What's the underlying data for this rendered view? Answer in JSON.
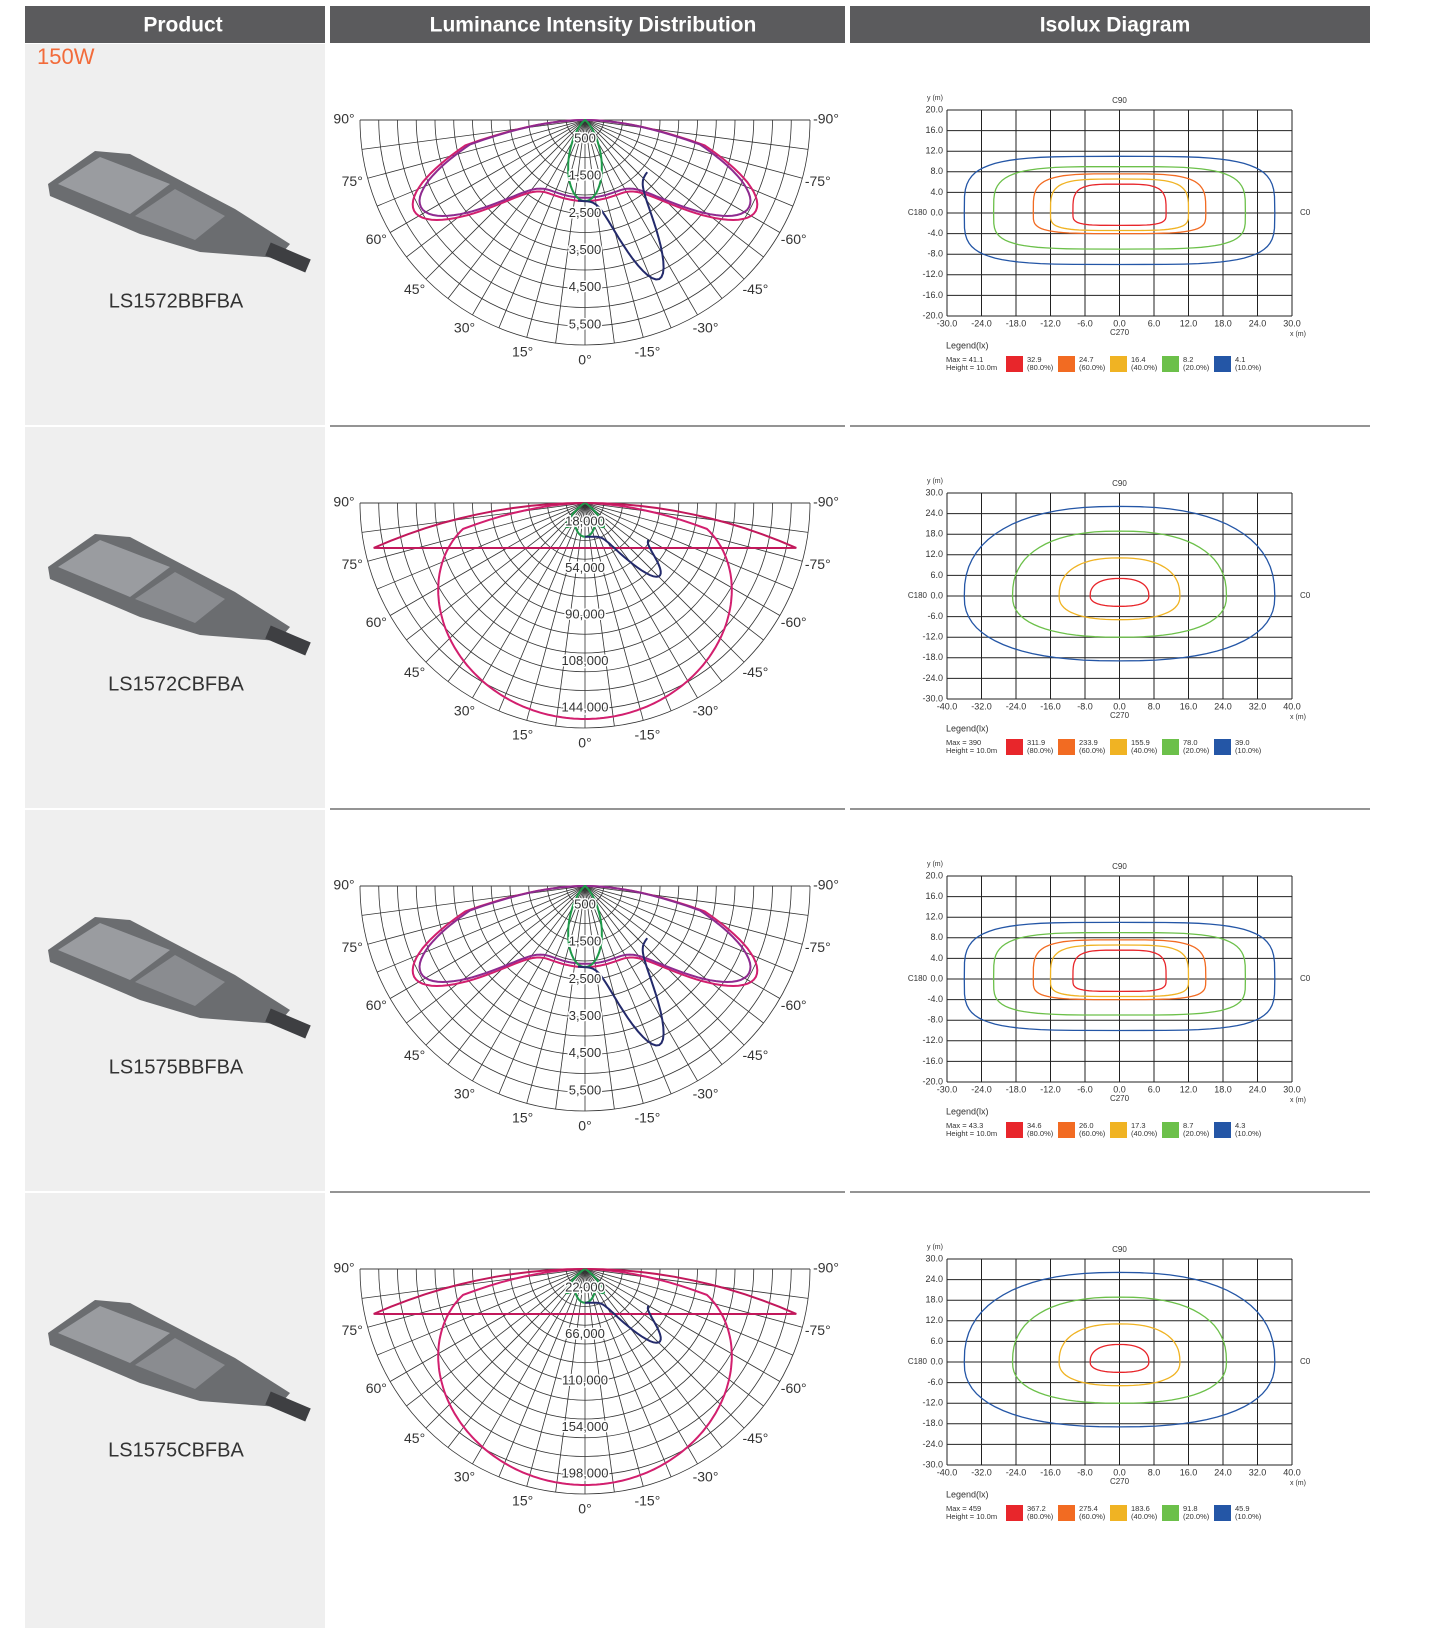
{
  "header": {
    "columns": [
      "Product",
      "Luminance Intensity Distribution",
      "Isolux Diagram"
    ]
  },
  "wattage": "150W",
  "polar_angles_left": [
    "90°",
    "75°",
    "60°",
    "45°",
    "30°",
    "15°",
    "0°"
  ],
  "polar_angles_right": [
    "-90°",
    "-75°",
    "-60°",
    "-45°",
    "-30°",
    "-15°"
  ],
  "isolux_labels": {
    "y_axis": "y (m)",
    "x_axis": "x (m)",
    "top": "C90",
    "left": "C180",
    "right": "C0",
    "bottom": "C270",
    "legend_title": "Legend(lx)",
    "height": "Height = 10.0m",
    "percents": [
      "(80.0%)",
      "(60.0%)",
      "(40.0%)",
      "(20.0%)",
      "(10.0%)"
    ],
    "colors": [
      "#e8262b",
      "#f26b22",
      "#f0b323",
      "#6cc04a",
      "#2456a6"
    ]
  },
  "rows": [
    {
      "product": "LS1572BBFBA",
      "rings": [
        "500",
        "1,500",
        "2,500",
        "3,500",
        "4,500",
        "5,500"
      ],
      "yticks": [
        "20.0",
        "16.0",
        "12.0",
        "8.0",
        "4.0",
        "0.0",
        "-4.0",
        "-8.0",
        "-12.0",
        "-16.0",
        "-20.0"
      ],
      "xticks": [
        "-30.0",
        "-24.0",
        "-18.0",
        "-12.0",
        "-6.0",
        "0.0",
        "6.0",
        "12.0",
        "18.0",
        "24.0",
        "30.0"
      ],
      "max": "Max = 41.1",
      "levels": [
        "32.9",
        "24.7",
        "16.4",
        "8.2",
        "4.1"
      ]
    },
    {
      "product": "LS1572CBFBA",
      "rings": [
        "18,000",
        "54,000",
        "90,000",
        "108,000",
        "144,000"
      ],
      "yticks": [
        "30.0",
        "24.0",
        "18.0",
        "12.0",
        "6.0",
        "0.0",
        "-6.0",
        "-12.0",
        "-18.0",
        "-24.0",
        "-30.0"
      ],
      "xticks": [
        "-40.0",
        "-32.0",
        "-24.0",
        "-16.0",
        "-8.0",
        "0.0",
        "8.0",
        "16.0",
        "24.0",
        "32.0",
        "40.0"
      ],
      "max": "Max = 390",
      "levels": [
        "311.9",
        "233.9",
        "155.9",
        "78.0",
        "39.0"
      ]
    },
    {
      "product": "LS1575BBFBA",
      "rings": [
        "500",
        "1,500",
        "2,500",
        "3,500",
        "4,500",
        "5,500"
      ],
      "yticks": [
        "20.0",
        "16.0",
        "12.0",
        "8.0",
        "4.0",
        "0.0",
        "-4.0",
        "-8.0",
        "-12.0",
        "-16.0",
        "-20.0"
      ],
      "xticks": [
        "-30.0",
        "-24.0",
        "-18.0",
        "-12.0",
        "-6.0",
        "0.0",
        "6.0",
        "12.0",
        "18.0",
        "24.0",
        "30.0"
      ],
      "max": "Max = 43.3",
      "levels": [
        "34.6",
        "26.0",
        "17.3",
        "8.7",
        "4.3"
      ]
    },
    {
      "product": "LS1575CBFBA",
      "rings": [
        "22,000",
        "66,000",
        "110,000",
        "154,000",
        "198,000"
      ],
      "yticks": [
        "30.0",
        "24.0",
        "18.0",
        "12.0",
        "6.0",
        "0.0",
        "-6.0",
        "-12.0",
        "-18.0",
        "-24.0",
        "-30.0"
      ],
      "xticks": [
        "-40.0",
        "-32.0",
        "-24.0",
        "-16.0",
        "-8.0",
        "0.0",
        "8.0",
        "16.0",
        "24.0",
        "32.0",
        "40.0"
      ],
      "max": "Max = 459",
      "levels": [
        "367.2",
        "275.4",
        "183.6",
        "91.8",
        "45.9"
      ]
    }
  ]
}
